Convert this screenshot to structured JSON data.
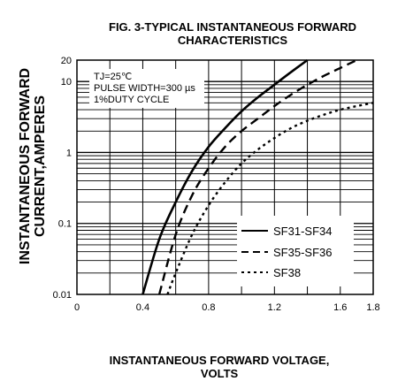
{
  "chart_data": {
    "type": "line",
    "title_lines": [
      "FIG. 3-TYPICAL INSTANTANEOUS FORWARD",
      "CHARACTERISTICS"
    ],
    "xlabel_lines": [
      "INSTANTANEOUS FORWARD VOLTAGE,",
      "VOLTS"
    ],
    "ylabel_lines": [
      "INSTANTANEOUS FORWARD",
      "CURRENT,AMPERES"
    ],
    "xlim": [
      0,
      1.8
    ],
    "ylim": [
      0.01,
      20
    ],
    "yscale": "log",
    "grid": true,
    "x_ticks": [
      "0",
      "0.4",
      "0.8",
      "1.2",
      "1.6",
      "1.8"
    ],
    "y_ticks": [
      "20",
      "10",
      "1",
      "0.1",
      "0.01"
    ],
    "annotations": [
      "TJ=25℃",
      "PULSE WIDTH=300 µs",
      "1%DUTY CYCLE"
    ],
    "legend_position": "lower-right",
    "series": [
      {
        "name": "SF31-SF34",
        "style": "solid",
        "x": [
          0.4,
          0.5,
          0.6,
          0.7,
          0.8,
          0.9,
          1.0,
          1.1,
          1.2,
          1.3,
          1.4
        ],
        "y": [
          0.01,
          0.06,
          0.2,
          0.55,
          1.2,
          2.2,
          3.8,
          6.0,
          9.0,
          13.5,
          20
        ]
      },
      {
        "name": "SF35-SF36",
        "style": "dashed",
        "x": [
          0.5,
          0.6,
          0.7,
          0.8,
          0.9,
          1.0,
          1.1,
          1.2,
          1.3,
          1.4,
          1.5,
          1.6,
          1.7
        ],
        "y": [
          0.01,
          0.07,
          0.25,
          0.6,
          1.2,
          2.0,
          3.0,
          4.5,
          6.5,
          9.0,
          12.0,
          15.5,
          20
        ]
      },
      {
        "name": "SF38",
        "style": "dotted",
        "x": [
          0.55,
          0.6,
          0.7,
          0.8,
          0.9,
          1.0,
          1.1,
          1.2,
          1.3,
          1.4,
          1.5,
          1.6,
          1.7,
          1.8
        ],
        "y": [
          0.01,
          0.02,
          0.07,
          0.18,
          0.38,
          0.7,
          1.1,
          1.6,
          2.2,
          2.8,
          3.4,
          4.0,
          4.5,
          5.0
        ]
      }
    ]
  }
}
